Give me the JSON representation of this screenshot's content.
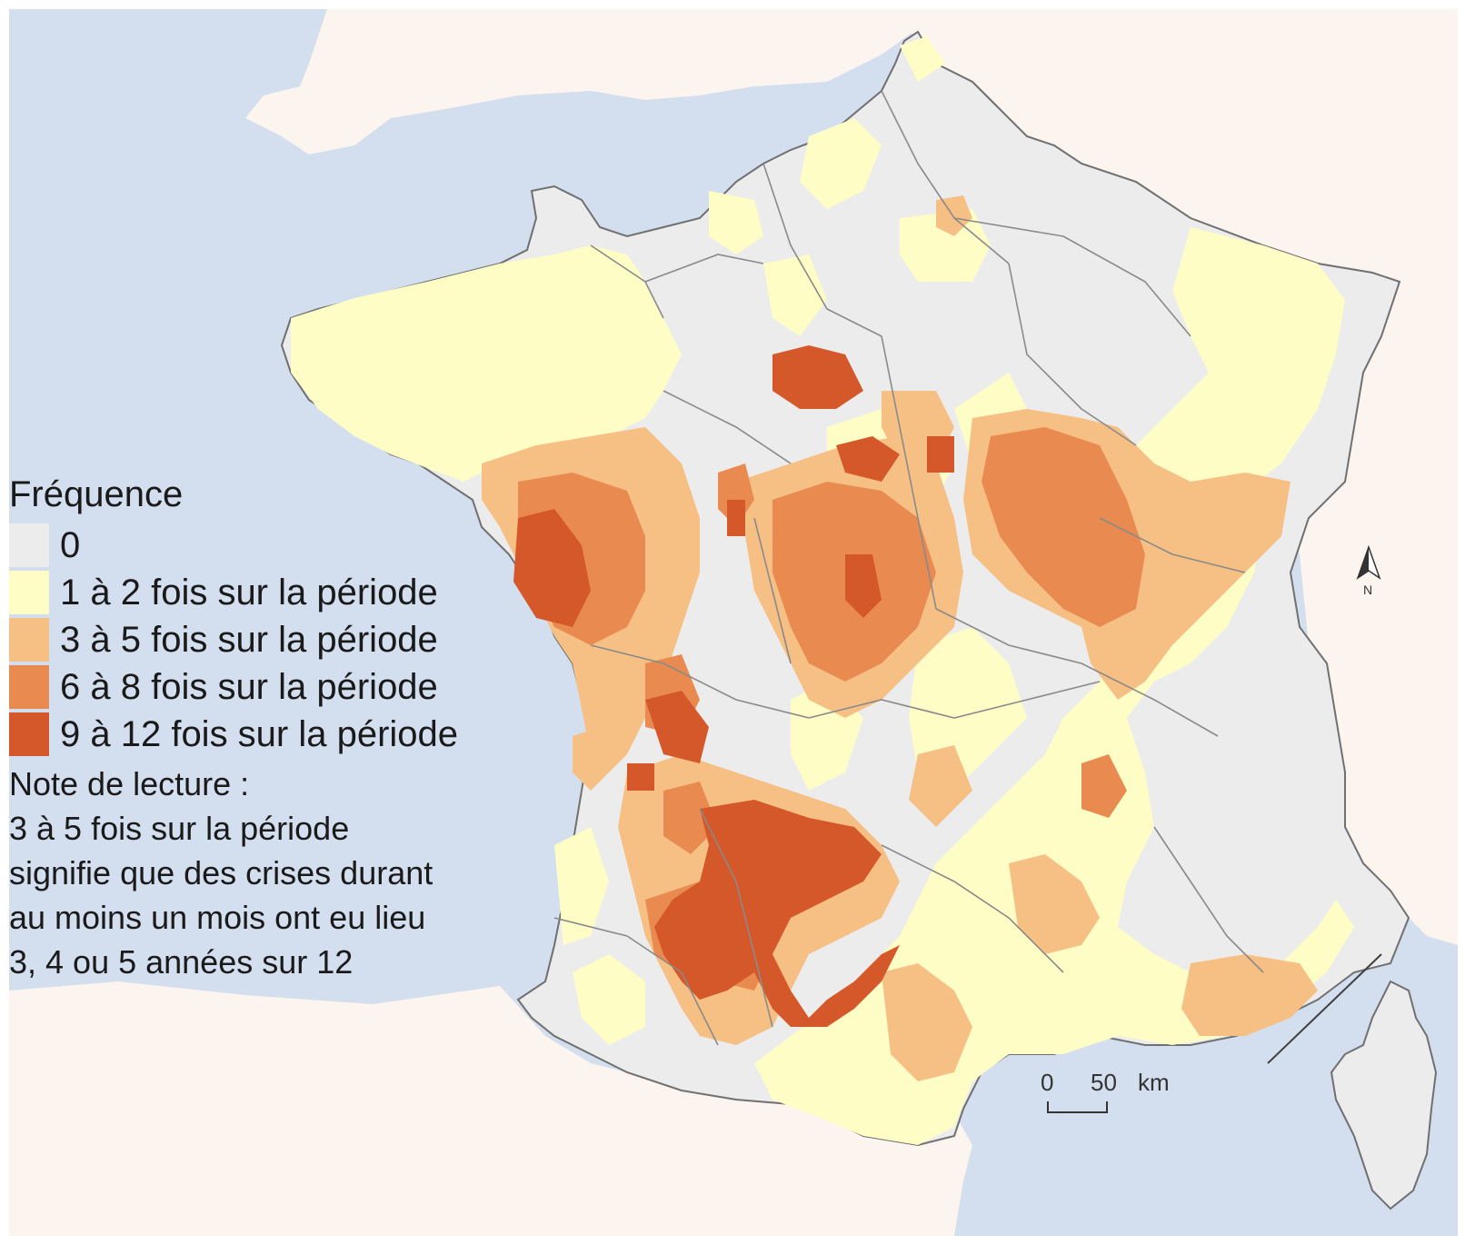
{
  "legend": {
    "title": "Fréquence",
    "items": [
      {
        "label": "0",
        "color": "#ececec"
      },
      {
        "label": "1 à 2 fois sur la période",
        "color": "#fefdc6"
      },
      {
        "label": "3 à 5 fois sur la période",
        "color": "#f6c085"
      },
      {
        "label": "6 à 8 fois sur la période",
        "color": "#e98b50"
      },
      {
        "label": "9 à 12 fois sur la période",
        "color": "#d4582a"
      }
    ],
    "note_lines": [
      "Note de lecture :",
      "3 à 5 fois sur la période",
      "signifie que des crises durant",
      "au moins un mois ont eu lieu",
      "3, 4 ou 5 années sur 12"
    ]
  },
  "scale": {
    "start_label": "0",
    "end_label": "50",
    "unit": "km"
  },
  "north_label": "N",
  "colors": {
    "sea": "#d3dfee",
    "land_outside": "#fcf4ee",
    "border": "#707070"
  }
}
